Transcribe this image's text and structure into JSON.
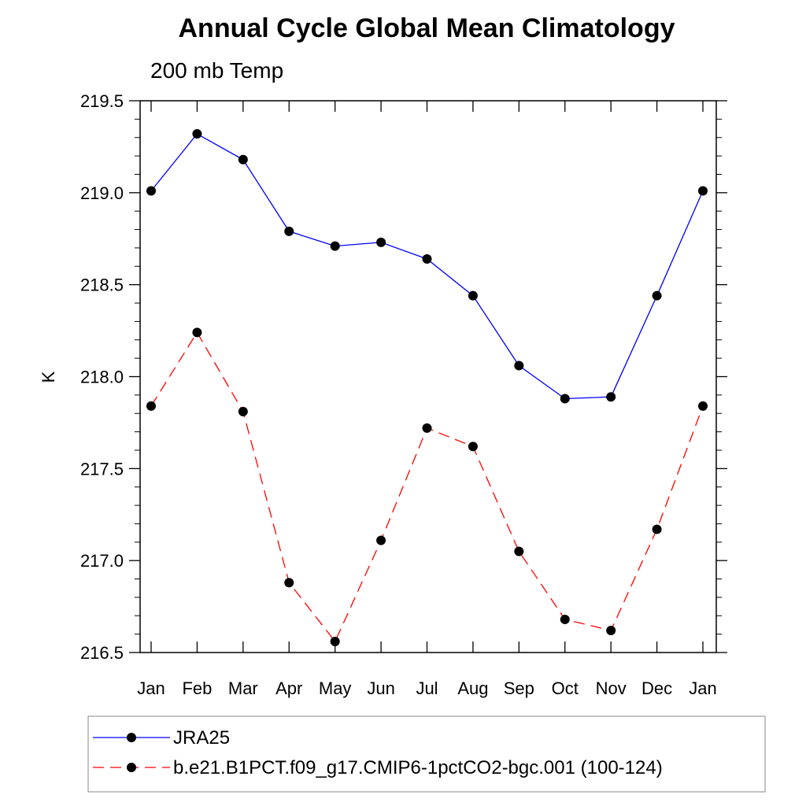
{
  "chart_data": {
    "type": "line",
    "title": "Annual Cycle Global Mean Climatology",
    "subtitle": "200 mb Temp",
    "xlabel": "",
    "ylabel": "K",
    "categories": [
      "Jan",
      "Feb",
      "Mar",
      "Apr",
      "May",
      "Jun",
      "Jul",
      "Aug",
      "Sep",
      "Oct",
      "Nov",
      "Dec",
      "Jan"
    ],
    "ylim": [
      216.5,
      219.5
    ],
    "yticks": [
      "216.5",
      "217.0",
      "217.5",
      "218.0",
      "218.5",
      "219.0",
      "219.5"
    ],
    "grid": false,
    "legend_position": "bottom",
    "series": [
      {
        "name": "JRA25",
        "color": "#0000ff",
        "line_style": "solid",
        "marker": "filled-circle",
        "values": [
          219.01,
          219.32,
          219.18,
          218.79,
          218.71,
          218.73,
          218.64,
          218.44,
          218.06,
          217.88,
          217.89,
          218.44,
          219.01
        ]
      },
      {
        "name": "b.e21.B1PCT.f09_g17.CMIP6-1pctCO2-bgc.001 (100-124)",
        "color": "#ff0000",
        "line_style": "dashed",
        "marker": "filled-circle",
        "values": [
          217.84,
          218.24,
          217.81,
          216.88,
          216.56,
          217.11,
          217.72,
          217.62,
          217.05,
          216.68,
          216.62,
          217.17,
          217.84
        ]
      }
    ]
  }
}
